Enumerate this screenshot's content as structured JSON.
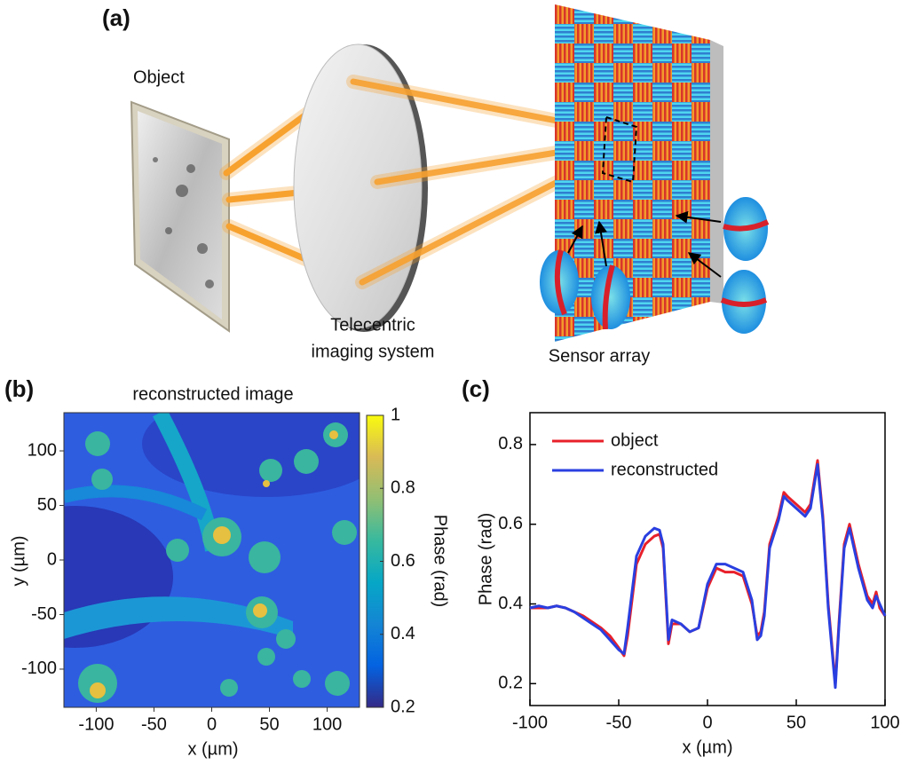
{
  "panel_a": {
    "label": "(a)",
    "object_label": "Object",
    "lens_label": [
      "Telecentric",
      "imaging system"
    ],
    "sensor_label": "Sensor array"
  },
  "chart_data": [
    {
      "type": "image",
      "panel_label": "(b)",
      "title": "reconstructed image",
      "x_label": "x (µm)",
      "y_label": "y (µm)",
      "xlim": [
        -128,
        128
      ],
      "xticks": [
        -100,
        -50,
        0,
        50,
        100
      ],
      "ylim": [
        -135,
        135
      ],
      "yticks": [
        -100,
        -50,
        0,
        50,
        100
      ],
      "colorbar": {
        "label": "Phase (rad)",
        "lim": [
          0.2,
          1
        ],
        "ticks": [
          0.2,
          0.4,
          0.6,
          0.8,
          1
        ],
        "colormap": "parula"
      }
    },
    {
      "type": "line",
      "panel_label": "(c)",
      "x_label": "x (µm)",
      "y_label": "Phase (rad)",
      "x": [
        -100,
        -95,
        -90,
        -85,
        -80,
        -75,
        -70,
        -65,
        -60,
        -55,
        -50,
        -47,
        -45,
        -40,
        -35,
        -30,
        -27,
        -25,
        -22,
        -20,
        -15,
        -10,
        -5,
        0,
        5,
        10,
        15,
        20,
        25,
        28,
        30,
        32,
        35,
        40,
        43,
        45,
        50,
        55,
        58,
        62,
        65,
        68,
        70,
        72,
        74,
        77,
        80,
        85,
        90,
        93,
        95,
        97,
        100
      ],
      "series": [
        {
          "name": "object",
          "color": "#e8202a",
          "values": [
            0.39,
            0.39,
            0.39,
            0.395,
            0.39,
            0.38,
            0.37,
            0.355,
            0.34,
            0.32,
            0.29,
            0.27,
            0.32,
            0.5,
            0.55,
            0.57,
            0.575,
            0.54,
            0.3,
            0.35,
            0.35,
            0.33,
            0.34,
            0.44,
            0.49,
            0.48,
            0.48,
            0.47,
            0.4,
            0.32,
            0.33,
            0.38,
            0.55,
            0.62,
            0.68,
            0.67,
            0.65,
            0.63,
            0.65,
            0.76,
            0.62,
            0.4,
            0.3,
            0.2,
            0.35,
            0.55,
            0.6,
            0.5,
            0.42,
            0.4,
            0.43,
            0.39,
            0.37
          ]
        },
        {
          "name": "reconstructed",
          "color": "#2a3fe0",
          "values": [
            0.39,
            0.395,
            0.39,
            0.395,
            0.39,
            0.38,
            0.365,
            0.35,
            0.335,
            0.31,
            0.285,
            0.275,
            0.34,
            0.52,
            0.57,
            0.59,
            0.585,
            0.55,
            0.31,
            0.36,
            0.35,
            0.33,
            0.34,
            0.45,
            0.5,
            0.5,
            0.49,
            0.48,
            0.41,
            0.31,
            0.32,
            0.37,
            0.54,
            0.61,
            0.67,
            0.66,
            0.64,
            0.62,
            0.64,
            0.75,
            0.61,
            0.39,
            0.29,
            0.19,
            0.34,
            0.54,
            0.59,
            0.49,
            0.41,
            0.39,
            0.42,
            0.4,
            0.37
          ]
        }
      ],
      "xlim": [
        -100,
        100
      ],
      "xticks": [
        -100,
        -50,
        0,
        50,
        100
      ],
      "ylim": [
        0.145,
        0.88
      ],
      "yticks": [
        0.2,
        0.4,
        0.6,
        0.8
      ],
      "legend": "upper left"
    }
  ]
}
